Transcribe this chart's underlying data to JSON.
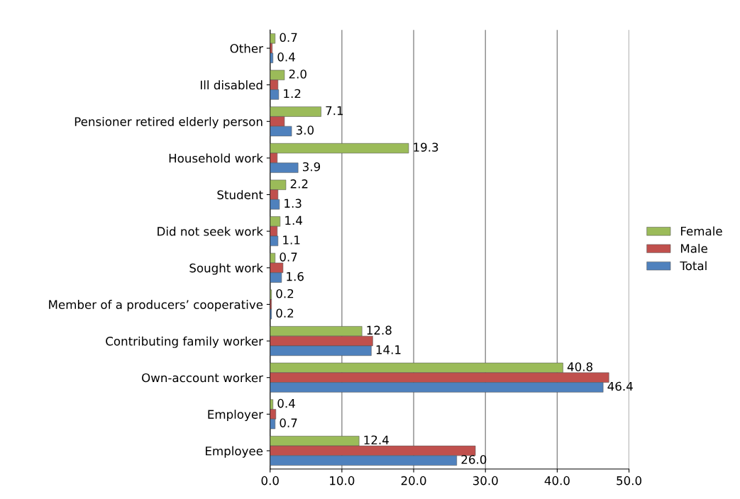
{
  "chart_data": {
    "type": "bar",
    "orientation": "horizontal",
    "categories": [
      "Other",
      "Ill disabled",
      "Pensioner retired elderly person",
      "Household work",
      "Student",
      "Did not seek work",
      "Sought work",
      "Member of a producers’ cooperative",
      "Contributing family worker",
      "Own-account worker",
      "Employer",
      "Employee"
    ],
    "series": [
      {
        "name": "Female",
        "color": "#9bbb59",
        "values": [
          0.7,
          2.0,
          7.1,
          19.3,
          2.2,
          1.4,
          0.7,
          0.2,
          12.8,
          40.8,
          0.4,
          12.4
        ],
        "value_labels": [
          "0.7",
          "2.0",
          "7.1",
          "19.3",
          "2.2",
          "1.4",
          "0.7",
          "0.2",
          "12.8",
          "40.8",
          "0.4",
          "12.4"
        ]
      },
      {
        "name": "Male",
        "color": "#c0504d",
        "values": [
          0.3,
          1.1,
          2.0,
          1.0,
          1.1,
          1.0,
          1.8,
          0.2,
          14.3,
          47.2,
          0.8,
          28.6
        ]
      },
      {
        "name": "Total",
        "color": "#4f81bd",
        "values": [
          0.4,
          1.2,
          3.0,
          3.9,
          1.3,
          1.1,
          1.6,
          0.2,
          14.1,
          46.4,
          0.7,
          26.0
        ],
        "value_labels": [
          "0.4",
          "1.2",
          "3.0",
          "3.9",
          "1.3",
          "1.1",
          "1.6",
          "0.2",
          "14.1",
          "46.4",
          "0.7",
          "26.0"
        ]
      }
    ],
    "xlim": [
      0,
      50
    ],
    "xticks": [
      {
        "value": 0,
        "label": "0.0"
      },
      {
        "value": 10,
        "label": "10.0"
      },
      {
        "value": 20,
        "label": "20.0"
      },
      {
        "value": 30,
        "label": "30.0"
      },
      {
        "value": 40,
        "label": "40.0"
      },
      {
        "value": 50,
        "label": "50.0"
      }
    ],
    "grid": "x",
    "legend": "right"
  }
}
